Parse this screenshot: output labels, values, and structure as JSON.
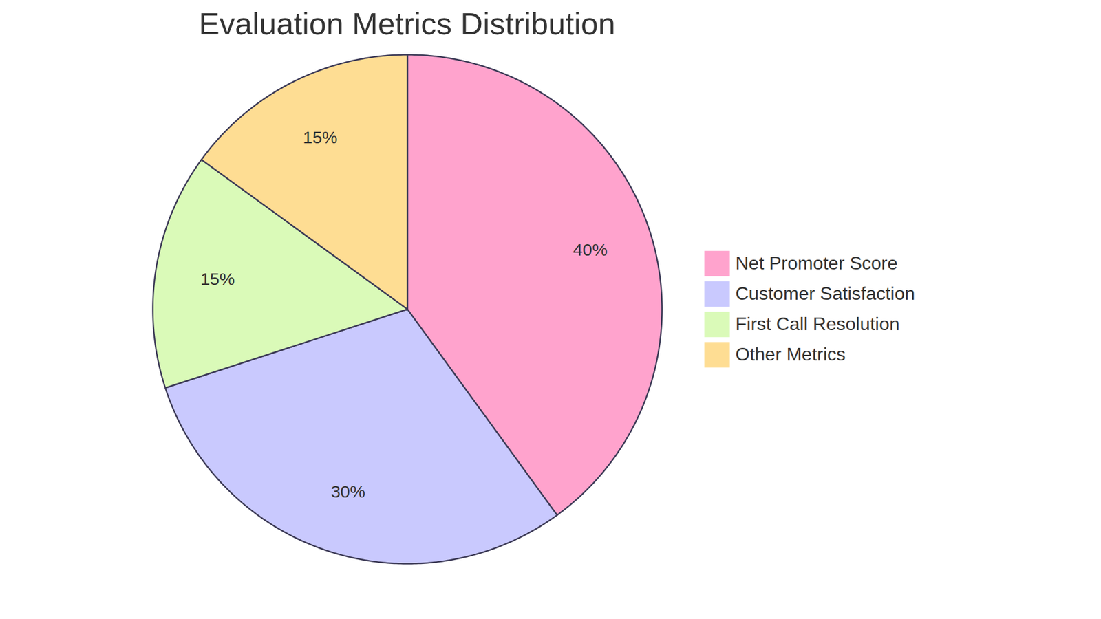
{
  "chart_data": {
    "type": "pie",
    "title": "Evaluation Metrics Distribution",
    "categories": [
      "Net Promoter Score",
      "Customer Satisfaction",
      "First Call Resolution",
      "Other Metrics"
    ],
    "values": [
      40,
      30,
      15,
      15
    ],
    "value_labels": [
      "40%",
      "30%",
      "15%",
      "15%"
    ],
    "colors": [
      "#ffa3cd",
      "#c9c9fe",
      "#dafab8",
      "#fedd93"
    ],
    "data_labels": true,
    "legend": "right"
  }
}
